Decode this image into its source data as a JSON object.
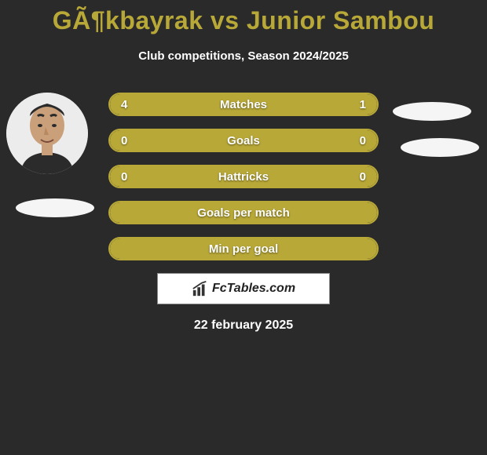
{
  "title": "GÃ¶kbayrak vs Junior Sambou",
  "subtitle": "Club competitions, Season 2024/2025",
  "date": "22 february 2025",
  "logo_text": "FcTables.com",
  "colors": {
    "accent": "#b8a838",
    "background": "#2a2a2a",
    "badge": "#f5f5f5",
    "logo_box": "#ffffff"
  },
  "stats": [
    {
      "label": "Matches",
      "left_val": "4",
      "right_val": "1",
      "left_pct": 80,
      "right_pct": 20,
      "full": false
    },
    {
      "label": "Goals",
      "left_val": "0",
      "right_val": "0",
      "left_pct": 50,
      "right_pct": 50,
      "full": false
    },
    {
      "label": "Hattricks",
      "left_val": "0",
      "right_val": "0",
      "left_pct": 50,
      "right_pct": 50,
      "full": false
    },
    {
      "label": "Goals per match",
      "left_val": "",
      "right_val": "",
      "left_pct": 0,
      "right_pct": 0,
      "full": true
    },
    {
      "label": "Min per goal",
      "left_val": "",
      "right_val": "",
      "left_pct": 0,
      "right_pct": 0,
      "full": true
    }
  ]
}
